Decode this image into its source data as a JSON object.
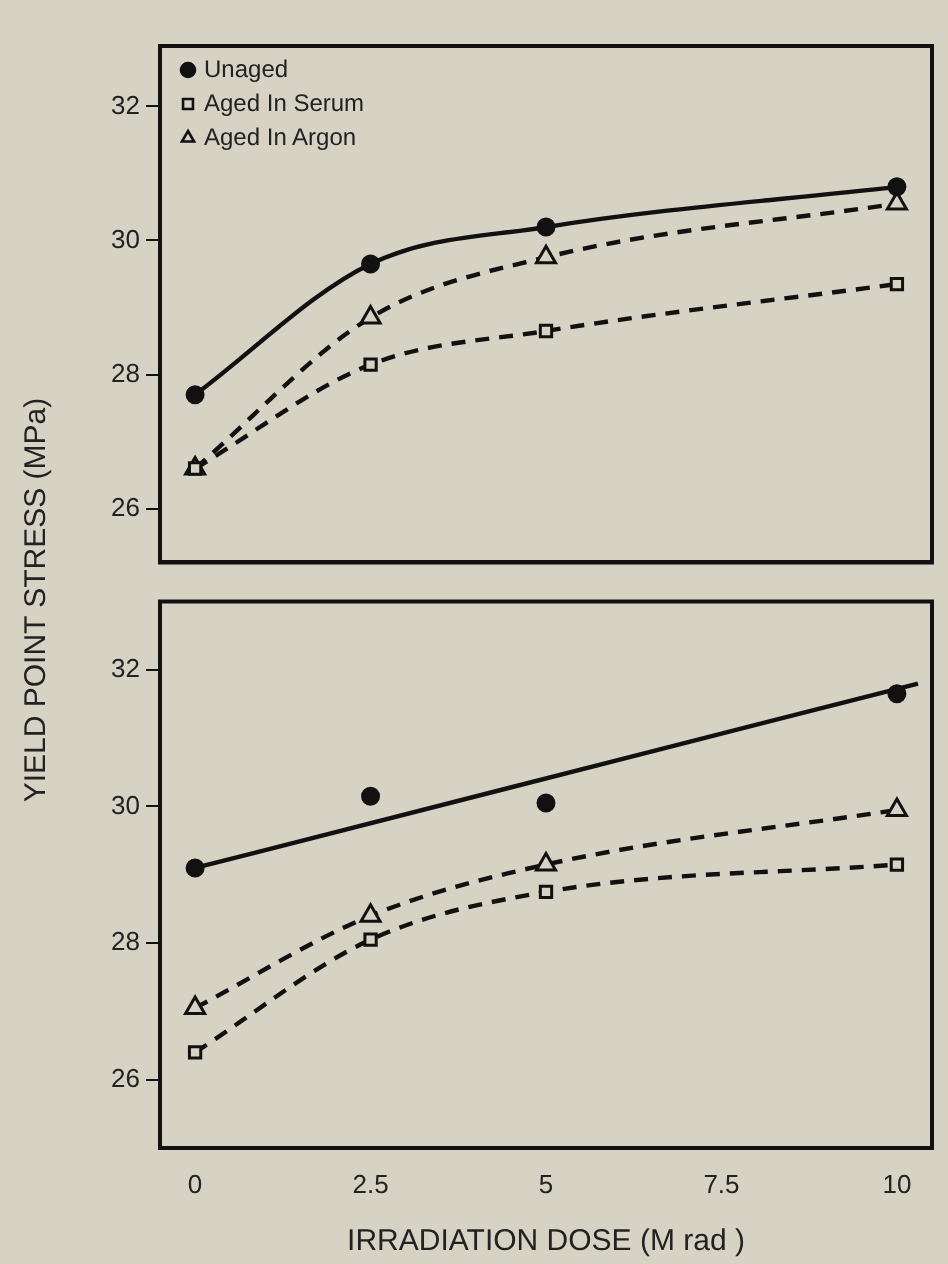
{
  "chart_data": [
    {
      "type": "line",
      "ylabel": "YIELD POINT STRESS (MPa)",
      "x": [
        0,
        2.5,
        5,
        10
      ],
      "xlim": [
        -0.5,
        10.5
      ],
      "xticks": [
        0,
        2.5,
        5,
        7.5,
        10
      ],
      "ylim": [
        25.2,
        32.9
      ],
      "yticks": [
        26,
        28,
        30,
        32
      ],
      "tick_labels": "y",
      "grid": false,
      "legend": "top left",
      "series": [
        {
          "name": "Unaged",
          "color": "#111111",
          "values": [
            27.7,
            29.65,
            30.2,
            30.8
          ],
          "marker": "circle",
          "line_style": "solid"
        },
        {
          "name": "Aged In Serum",
          "color": "#111111",
          "values": [
            26.6,
            28.15,
            28.65,
            29.35
          ],
          "marker": "square",
          "line_style": "dashed"
        },
        {
          "name": "Aged In Argon",
          "color": "#111111",
          "values": [
            26.6,
            28.85,
            29.75,
            30.55
          ],
          "marker": "triangle",
          "line_style": "dashed"
        }
      ]
    },
    {
      "type": "line",
      "xlabel": "IRRADIATION DOSE (M rad )",
      "x": [
        0,
        2.5,
        5,
        10
      ],
      "xlim": [
        -0.5,
        10.5
      ],
      "xticks": [
        0,
        2.5,
        5,
        7.5,
        10
      ],
      "ylim": [
        25,
        33
      ],
      "yticks": [
        26,
        28,
        30,
        32
      ],
      "grid": false,
      "legend": false,
      "series": [
        {
          "type": "scatter",
          "color": "#111111",
          "values": [
            29.1,
            30.15,
            30.05,
            31.65
          ],
          "marker": "circle"
        },
        {
          "type": "line",
          "color": "#111111",
          "x": [
            0,
            10.3
          ],
          "values": [
            29.1,
            31.8
          ],
          "marker": "none",
          "line_style": "solid"
        },
        {
          "color": "#111111",
          "values": [
            26.4,
            28.05,
            28.75,
            29.15
          ],
          "marker": "square",
          "line_style": "dashed"
        },
        {
          "color": "#111111",
          "values": [
            27.05,
            28.4,
            29.15,
            29.95
          ],
          "marker": "triangle",
          "line_style": "dashed"
        }
      ]
    }
  ]
}
